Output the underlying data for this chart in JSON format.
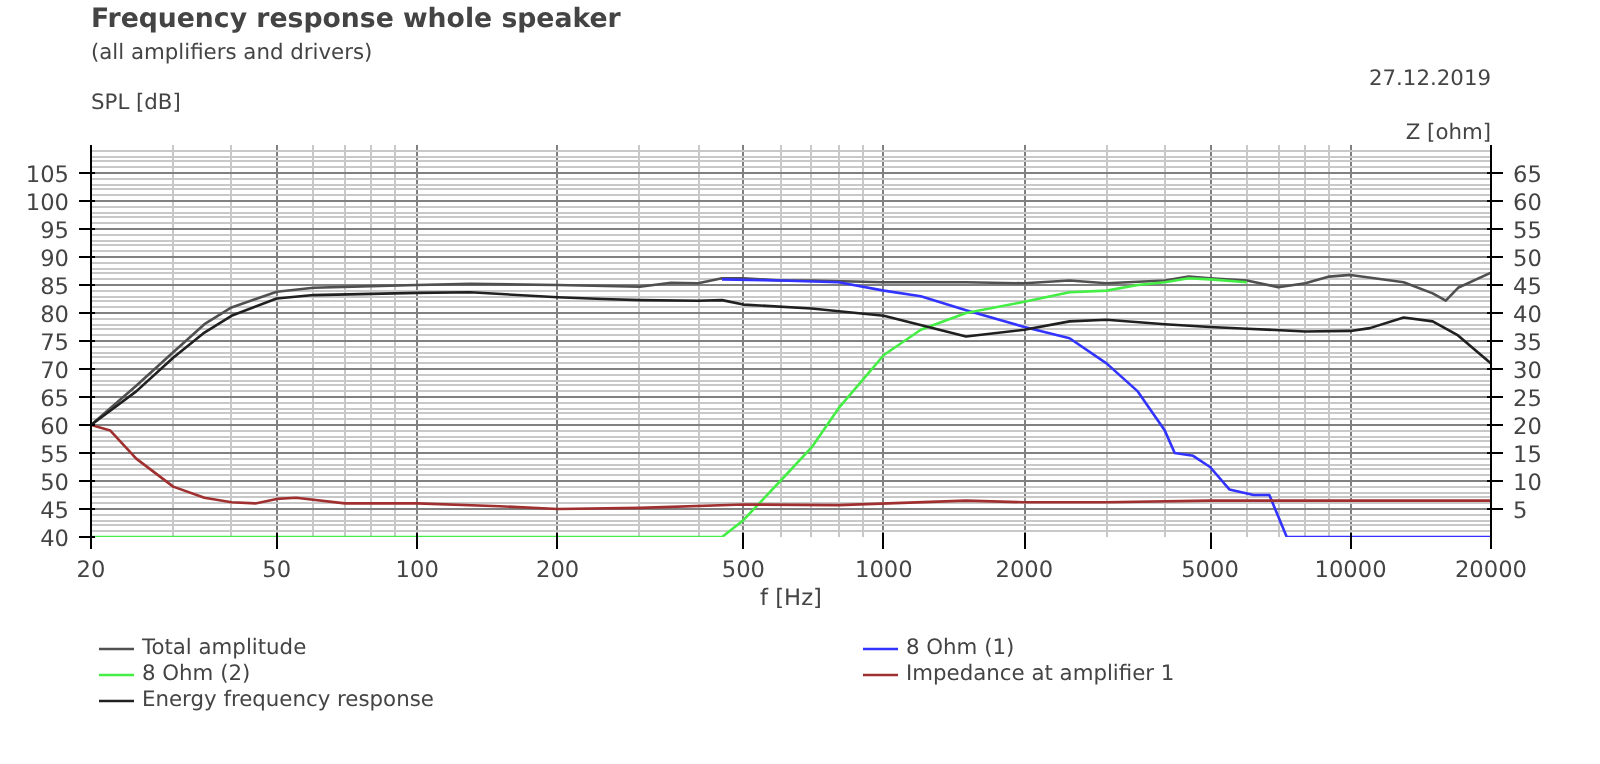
{
  "chart_data": {
    "type": "line",
    "title": "Frequency response whole speaker",
    "subtitle": "(all amplifiers and drivers)",
    "annotations": [
      "27.12.2019"
    ],
    "xlabel": "f [Hz]",
    "ylabel": "SPL [dB]",
    "y2label": "Z [ohm]",
    "log": "x",
    "xlim": [
      20,
      20000
    ],
    "xticks": [
      20,
      50,
      100,
      200,
      500,
      1000,
      2000,
      5000,
      10000,
      20000
    ],
    "ylim": [
      40,
      110
    ],
    "yticks": [
      40,
      45,
      50,
      55,
      60,
      65,
      70,
      75,
      80,
      85,
      90,
      95,
      100,
      105
    ],
    "y2lim": [
      0,
      70
    ],
    "y2ticks": [
      5,
      10,
      15,
      20,
      25,
      30,
      35,
      40,
      45,
      50,
      55,
      60,
      65
    ],
    "grid": true,
    "legend": "bottom",
    "marker": "none",
    "line_style": "solid",
    "series": [
      {
        "name": "Total amplitude",
        "color": "#505050",
        "x": [
          20,
          25,
          30,
          35,
          40,
          50,
          60,
          80,
          100,
          130,
          200,
          300,
          350,
          400,
          450,
          500,
          600,
          700,
          1000,
          1500,
          2000,
          2500,
          3000,
          4000,
          4500,
          5000,
          6000,
          7000,
          8000,
          9000,
          10000,
          13000,
          15000,
          16000,
          17000,
          20000
        ],
        "values": [
          60,
          67,
          73,
          78,
          81,
          83.8,
          84.5,
          84.8,
          85,
          85.2,
          85,
          84.7,
          85.4,
          85.3,
          86.2,
          86.2,
          85.8,
          85.8,
          85.5,
          85.5,
          85.3,
          85.8,
          85.3,
          85.8,
          86.5,
          86.2,
          85.8,
          84.6,
          85.3,
          86.5,
          86.8,
          85.5,
          83.5,
          82.2,
          84.5,
          87.2
        ]
      },
      {
        "name": "8 Ohm (1)",
        "color": "#3333ff",
        "x": [
          450,
          600,
          800,
          1000,
          1200,
          1500,
          2000,
          2500,
          3000,
          3500,
          4000,
          4200,
          4600,
          5000,
          5500,
          6200,
          6700,
          7300,
          20000
        ],
        "values": [
          86,
          85.8,
          85.5,
          84,
          83,
          80.5,
          77.5,
          75.5,
          71,
          66,
          59,
          55,
          54.5,
          52.5,
          48.5,
          47.5,
          47.5,
          40,
          40
        ]
      },
      {
        "name": "8 Ohm (2)",
        "color": "#44ee44",
        "x": [
          20,
          450,
          500,
          600,
          700,
          800,
          900,
          1000,
          1200,
          1500,
          2000,
          2500,
          3000,
          3500,
          4000,
          4500,
          5000,
          6000
        ],
        "values": [
          40,
          40,
          43,
          50,
          56,
          63,
          68,
          72.5,
          77,
          80,
          82,
          83.7,
          84,
          85,
          85.5,
          86.2,
          86,
          85.5
        ]
      },
      {
        "name": "Impedance at amplifier 1",
        "color": "#a03030",
        "axis": "y2",
        "x": [
          20,
          22,
          25,
          30,
          35,
          40,
          45,
          50,
          55,
          70,
          100,
          150,
          200,
          300,
          500,
          800,
          1500,
          2000,
          3000,
          5000,
          20000
        ],
        "values": [
          20,
          19,
          14,
          9,
          7,
          6.2,
          6,
          6.8,
          7,
          6,
          6,
          5.5,
          5,
          5.2,
          5.8,
          5.7,
          6.5,
          6.2,
          6.2,
          6.5,
          6.5
        ]
      },
      {
        "name": "Energy frequency response",
        "color": "#202020",
        "x": [
          20,
          25,
          30,
          35,
          40,
          50,
          60,
          100,
          130,
          200,
          250,
          300,
          400,
          450,
          500,
          700,
          1000,
          1500,
          2000,
          2500,
          3000,
          4000,
          5000,
          6000,
          8000,
          10000,
          11000,
          13000,
          15000,
          17000,
          20000
        ],
        "values": [
          60,
          66,
          72,
          76.5,
          79.5,
          82.6,
          83.2,
          83.6,
          83.7,
          82.8,
          82.5,
          82.3,
          82.2,
          82.3,
          81.5,
          80.8,
          79.5,
          75.8,
          77,
          78.5,
          78.8,
          78,
          77.5,
          77.2,
          76.7,
          76.8,
          77.3,
          79.2,
          78.5,
          76,
          71
        ]
      }
    ]
  }
}
